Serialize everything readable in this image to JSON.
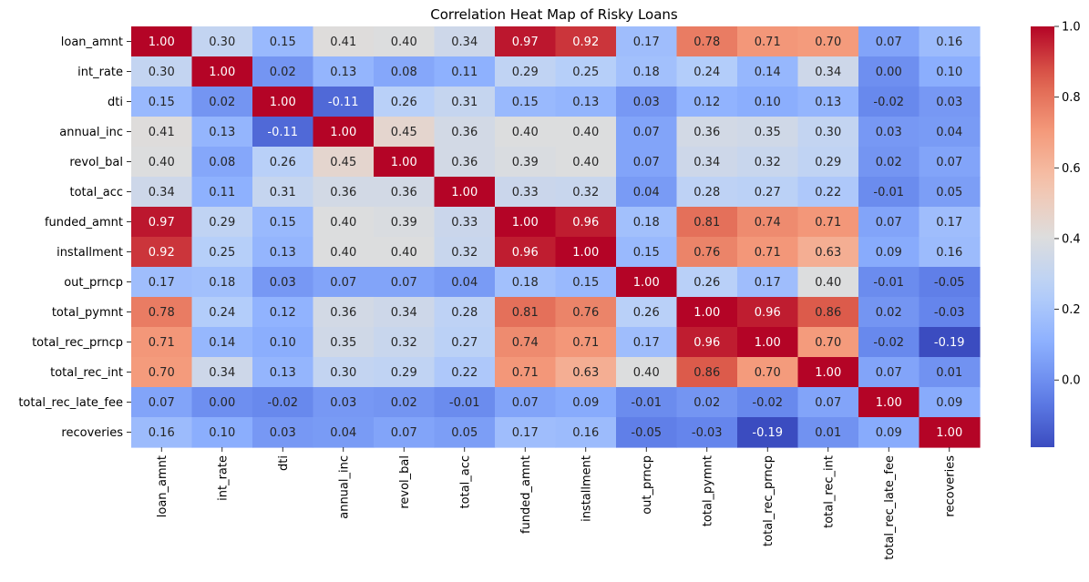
{
  "chart_data": {
    "type": "heatmap",
    "title": "Correlation Heat Map of Risky Loans",
    "xlabel": "",
    "ylabel": "",
    "colormap": "coolwarm",
    "vmin": -0.19,
    "vmax": 1.0,
    "colorbar_ticks": [
      "0.0",
      "0.2",
      "0.4",
      "0.6",
      "0.8",
      "1.0"
    ],
    "colorbar_tick_values": [
      0.0,
      0.2,
      0.4,
      0.6,
      0.8,
      1.0
    ],
    "rows": [
      "loan_amnt",
      "int_rate",
      "dti",
      "annual_inc",
      "revol_bal",
      "total_acc",
      "funded_amnt",
      "installment",
      "out_prncp",
      "total_pymnt",
      "total_rec_prncp",
      "total_rec_int",
      "total_rec_late_fee",
      "recoveries"
    ],
    "columns": [
      "loan_amnt",
      "int_rate",
      "dti",
      "annual_inc",
      "revol_bal",
      "total_acc",
      "funded_amnt",
      "installment",
      "out_prncp",
      "total_pymnt",
      "total_rec_prncp",
      "total_rec_int",
      "total_rec_late_fee",
      "recoveries"
    ],
    "values": [
      [
        1.0,
        0.3,
        0.15,
        0.41,
        0.4,
        0.34,
        0.97,
        0.92,
        0.17,
        0.78,
        0.71,
        0.7,
        0.07,
        0.16
      ],
      [
        0.3,
        1.0,
        0.02,
        0.13,
        0.08,
        0.11,
        0.29,
        0.25,
        0.18,
        0.24,
        0.14,
        0.34,
        0.0,
        0.1
      ],
      [
        0.15,
        0.02,
        1.0,
        -0.11,
        0.26,
        0.31,
        0.15,
        0.13,
        0.03,
        0.12,
        0.1,
        0.13,
        -0.02,
        0.03
      ],
      [
        0.41,
        0.13,
        -0.11,
        1.0,
        0.45,
        0.36,
        0.4,
        0.4,
        0.07,
        0.36,
        0.35,
        0.3,
        0.03,
        0.04
      ],
      [
        0.4,
        0.08,
        0.26,
        0.45,
        1.0,
        0.36,
        0.39,
        0.4,
        0.07,
        0.34,
        0.32,
        0.29,
        0.02,
        0.07
      ],
      [
        0.34,
        0.11,
        0.31,
        0.36,
        0.36,
        1.0,
        0.33,
        0.32,
        0.04,
        0.28,
        0.27,
        0.22,
        -0.01,
        0.05
      ],
      [
        0.97,
        0.29,
        0.15,
        0.4,
        0.39,
        0.33,
        1.0,
        0.96,
        0.18,
        0.81,
        0.74,
        0.71,
        0.07,
        0.17
      ],
      [
        0.92,
        0.25,
        0.13,
        0.4,
        0.4,
        0.32,
        0.96,
        1.0,
        0.15,
        0.76,
        0.71,
        0.63,
        0.09,
        0.16
      ],
      [
        0.17,
        0.18,
        0.03,
        0.07,
        0.07,
        0.04,
        0.18,
        0.15,
        1.0,
        0.26,
        0.17,
        0.4,
        -0.01,
        -0.05
      ],
      [
        0.78,
        0.24,
        0.12,
        0.36,
        0.34,
        0.28,
        0.81,
        0.76,
        0.26,
        1.0,
        0.96,
        0.86,
        0.02,
        -0.03
      ],
      [
        0.71,
        0.14,
        0.1,
        0.35,
        0.32,
        0.27,
        0.74,
        0.71,
        0.17,
        0.96,
        1.0,
        0.7,
        -0.02,
        -0.19
      ],
      [
        0.7,
        0.34,
        0.13,
        0.3,
        0.29,
        0.22,
        0.71,
        0.63,
        0.4,
        0.86,
        0.7,
        1.0,
        0.07,
        0.01
      ],
      [
        0.07,
        0.0,
        -0.02,
        0.03,
        0.02,
        -0.01,
        0.07,
        0.09,
        -0.01,
        0.02,
        -0.02,
        0.07,
        1.0,
        0.09
      ],
      [
        0.16,
        0.1,
        0.03,
        0.04,
        0.07,
        0.05,
        0.17,
        0.16,
        -0.05,
        -0.03,
        -0.19,
        0.01,
        0.09,
        1.0
      ]
    ],
    "colorbar_ticks_text": [
      "1.0",
      "0.8",
      "0.6",
      "0.4",
      "0.2",
      "0.0"
    ],
    "colorbar_extra_ticks": [],
    "grid": false,
    "legend": "colorbar-right"
  }
}
